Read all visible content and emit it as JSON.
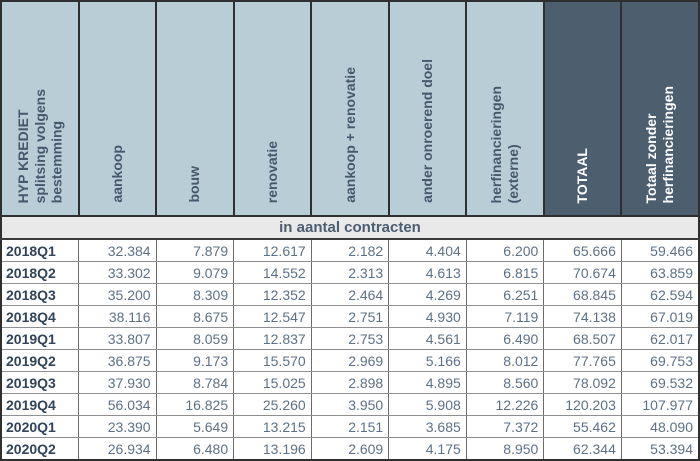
{
  "table": {
    "title_header": "HYP KREDIET\nsplitsing volgens\nbestemming",
    "columns": [
      {
        "label": "aankoop",
        "style": "light"
      },
      {
        "label": "bouw",
        "style": "light"
      },
      {
        "label": "renovatie",
        "style": "light"
      },
      {
        "label": "aankoop + renovatie",
        "style": "light"
      },
      {
        "label": "ander onroerend doel",
        "style": "light"
      },
      {
        "label": "herfinancieringen\n(externe)",
        "style": "light"
      },
      {
        "label": "TOTAAL",
        "style": "dark"
      },
      {
        "label": "Totaal zonder\nherfinancieringen",
        "style": "dark"
      }
    ],
    "unit_band": "in aantal contracten",
    "rows": [
      {
        "quarter": "2018Q1",
        "values": [
          "32.384",
          "7.879",
          "12.617",
          "2.182",
          "4.404",
          "6.200",
          "65.666",
          "59.466"
        ]
      },
      {
        "quarter": "2018Q2",
        "values": [
          "33.302",
          "9.079",
          "14.552",
          "2.313",
          "4.613",
          "6.815",
          "70.674",
          "63.859"
        ]
      },
      {
        "quarter": "2018Q3",
        "values": [
          "35.200",
          "8.309",
          "12.352",
          "2.464",
          "4.269",
          "6.251",
          "68.845",
          "62.594"
        ]
      },
      {
        "quarter": "2018Q4",
        "values": [
          "38.116",
          "8.675",
          "12.547",
          "2.751",
          "4.930",
          "7.119",
          "74.138",
          "67.019"
        ]
      },
      {
        "quarter": "2019Q1",
        "values": [
          "33.807",
          "8.059",
          "12.837",
          "2.753",
          "4.561",
          "6.490",
          "68.507",
          "62.017"
        ]
      },
      {
        "quarter": "2019Q2",
        "values": [
          "36.875",
          "9.173",
          "15.570",
          "2.969",
          "5.166",
          "8.012",
          "77.765",
          "69.753"
        ]
      },
      {
        "quarter": "2019Q3",
        "values": [
          "37.930",
          "8.784",
          "15.025",
          "2.898",
          "4.895",
          "8.560",
          "78.092",
          "69.532"
        ]
      },
      {
        "quarter": "2019Q4",
        "values": [
          "56.034",
          "16.825",
          "25.260",
          "3.950",
          "5.908",
          "12.226",
          "120.203",
          "107.977"
        ]
      },
      {
        "quarter": "2020Q1",
        "values": [
          "23.390",
          "5.649",
          "13.215",
          "2.151",
          "3.685",
          "7.372",
          "55.462",
          "48.090"
        ]
      },
      {
        "quarter": "2020Q2",
        "values": [
          "26.934",
          "6.480",
          "13.196",
          "2.609",
          "4.175",
          "8.950",
          "62.344",
          "53.394"
        ]
      }
    ]
  },
  "colors": {
    "header_light_bg": "#b9cdd6",
    "header_dark_bg": "#4d5e6e",
    "header_text": "#46586c",
    "header_dark_text": "#ffffff",
    "band_bg": "#e9e9e9",
    "band_text": "#4b5d70",
    "quarter_text": "#31445a",
    "number_text": "#5d7186",
    "grid_border": "#2f2f2f"
  }
}
